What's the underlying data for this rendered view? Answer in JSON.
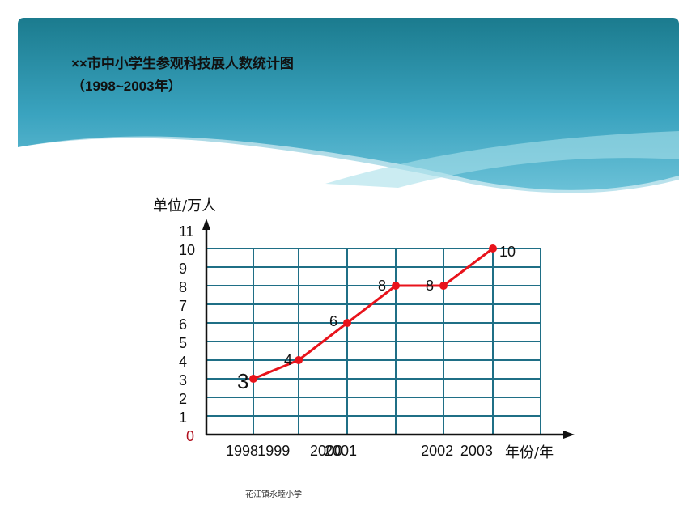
{
  "header": {
    "title": "××市中小学生参观科技展人数统计图",
    "subtitle": "（1998~2003年）"
  },
  "footer": {
    "text": "花江镇永睦小学"
  },
  "chart_data": {
    "type": "line",
    "ylabel": "单位/万人",
    "xlabel": "年份/年",
    "y_ticks": [
      "0",
      "1",
      "2",
      "3",
      "4",
      "5",
      "6",
      "7",
      "8",
      "9",
      "10",
      "11"
    ],
    "x_tick_labels": [
      "1998",
      "1999",
      "2000",
      "2001",
      "2002",
      "2003"
    ],
    "x_tick_label_positions": [
      0,
      0.7,
      1.8,
      2.1,
      4.1,
      4.9
    ],
    "x": [
      0,
      1,
      2,
      3,
      4,
      5
    ],
    "values": [
      3,
      4,
      6,
      8,
      8,
      10
    ],
    "point_labels": [
      "3",
      "4",
      "6",
      "8",
      "8",
      "10"
    ],
    "ylim": [
      0,
      11
    ],
    "grid": true,
    "colors": {
      "line": "#e8131b",
      "grid": "#1f6f86",
      "axis": "#111111",
      "zero": "#b0101e"
    }
  }
}
